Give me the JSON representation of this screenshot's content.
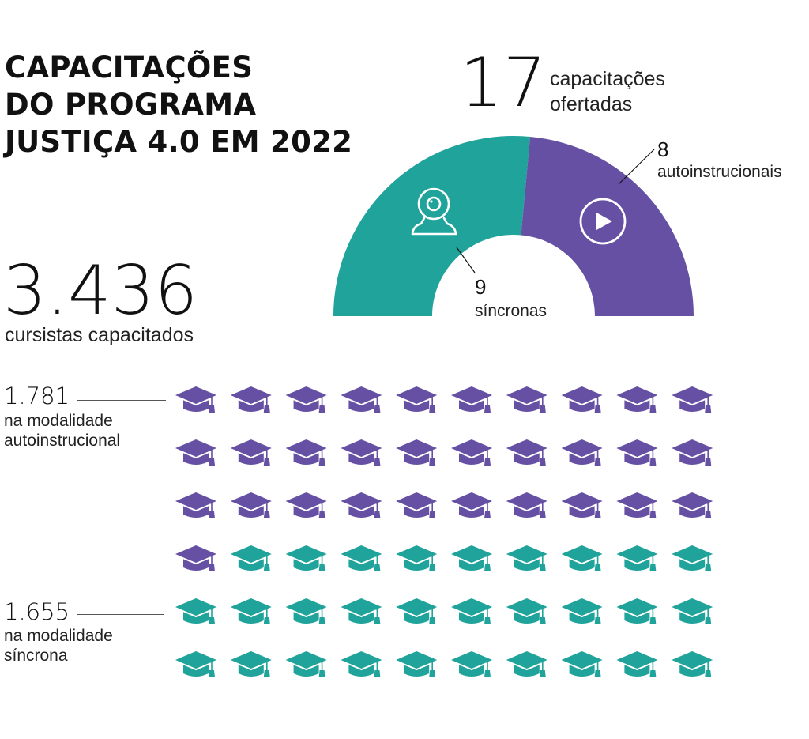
{
  "title_lines": [
    "CAPACITAÇÕES",
    "DO PROGRAMA",
    "JUSTIÇA 4.0 EM 2022"
  ],
  "offered": {
    "total": "17",
    "label_lines": [
      "capacitações",
      "ofertadas"
    ]
  },
  "trainees": {
    "total": "3.436",
    "label": "cursistas capacitados"
  },
  "segments": {
    "self_paced": {
      "count": "8",
      "label": "autoinstrucionais"
    },
    "synchronous": {
      "count": "9",
      "label": "síncronas"
    }
  },
  "groups": {
    "self_paced": {
      "count": "1.781",
      "label_lines": [
        "na modalidade",
        "autoinstrucional"
      ]
    },
    "synchronous": {
      "count": "1.655",
      "label_lines": [
        "na modalidade",
        "síncrona"
      ]
    }
  },
  "colors": {
    "self_paced": "#6650a4",
    "synchronous": "#1fa39a",
    "text": "#111111"
  },
  "icons": {
    "synchronous": "webcam-icon",
    "self_paced": "play-icon",
    "pictogram": "graduation-cap-icon"
  },
  "chart_data": [
    {
      "type": "pie",
      "variant": "half-donut",
      "categories": [
        "síncronas",
        "autoinstrucionais"
      ],
      "values": [
        9,
        8
      ],
      "total": 17
    },
    {
      "type": "pictogram",
      "icon": "graduation-cap-icon",
      "grid": {
        "rows": 6,
        "columns": 10
      },
      "categories": [
        "autoinstrucional",
        "síncrona"
      ],
      "values": [
        1781,
        1655
      ],
      "icon_counts": [
        31,
        29
      ]
    }
  ]
}
